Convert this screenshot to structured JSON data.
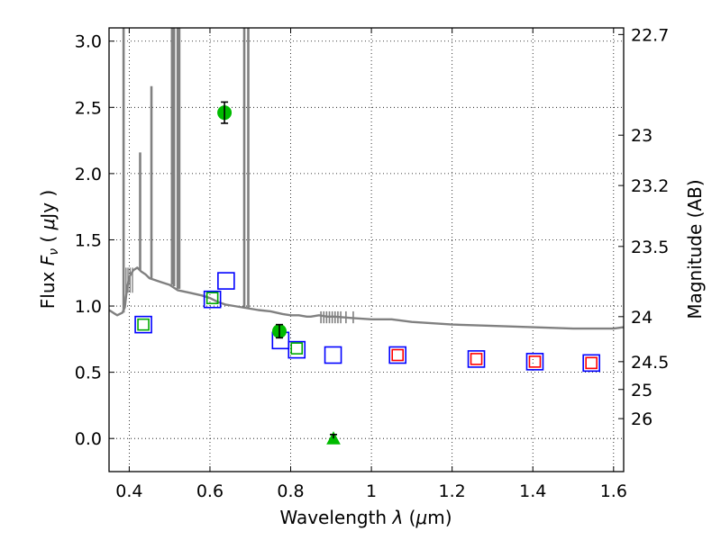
{
  "chart_data": {
    "type": "scatter",
    "title": "",
    "xlabel": "Wavelength  λ (μm)",
    "ylabel": "Flux  Fν  ( μJy )",
    "y2label": "Magnitude (AB)",
    "xlim": [
      0.35,
      1.625
    ],
    "ylim": [
      -0.25,
      3.1
    ],
    "grid": true,
    "xticks": [
      0.4,
      0.6,
      0.8,
      1.0,
      1.2,
      1.4,
      1.6
    ],
    "xtick_labels": [
      "0.4",
      "0.6",
      "0.8",
      "1",
      "1.2",
      "1.4",
      "1.6"
    ],
    "yticks": [
      0.0,
      0.5,
      1.0,
      1.5,
      2.0,
      2.5,
      3.0
    ],
    "ytick_labels": [
      "0.0",
      "0.5",
      "1.0",
      "1.5",
      "2.0",
      "2.5",
      "3.0"
    ],
    "y2ticks": [
      {
        "label": "22.7",
        "flux": 3.05
      },
      {
        "label": "23",
        "flux": 2.29
      },
      {
        "label": "23.2",
        "flux": 1.91
      },
      {
        "label": "23.5",
        "flux": 1.45
      },
      {
        "label": "24",
        "flux": 0.92
      },
      {
        "label": "24.5",
        "flux": 0.58
      },
      {
        "label": "25",
        "flux": 0.37
      },
      {
        "label": "26",
        "flux": 0.15
      }
    ],
    "colors": {
      "model": "#808080",
      "observed": "#00bb00",
      "model_phot_blue": "#0000ff",
      "model_phot_green": "#00aa00",
      "model_phot_red": "#ff0000",
      "errorbar": "#000000"
    },
    "series": [
      {
        "name": "model_spectrum",
        "kind": "line",
        "x": [
          0.35,
          0.37,
          0.383,
          0.389,
          0.394,
          0.4,
          0.41,
          0.42,
          0.43,
          0.44,
          0.45,
          0.46,
          0.48,
          0.5,
          0.52,
          0.55,
          0.58,
          0.6,
          0.62,
          0.64,
          0.66,
          0.68,
          0.7,
          0.72,
          0.75,
          0.78,
          0.8,
          0.82,
          0.84,
          0.85,
          0.87,
          0.89,
          0.91,
          0.95,
          1.0,
          1.05,
          1.1,
          1.2,
          1.3,
          1.4,
          1.5,
          1.6,
          1.625
        ],
        "y": [
          0.97,
          0.93,
          0.95,
          0.99,
          1.12,
          1.22,
          1.27,
          1.29,
          1.26,
          1.24,
          1.21,
          1.2,
          1.18,
          1.16,
          1.12,
          1.1,
          1.08,
          1.06,
          1.03,
          1.01,
          1.0,
          0.99,
          0.98,
          0.97,
          0.96,
          0.94,
          0.93,
          0.93,
          0.92,
          0.92,
          0.93,
          0.92,
          0.92,
          0.91,
          0.9,
          0.9,
          0.88,
          0.86,
          0.85,
          0.84,
          0.83,
          0.83,
          0.84
        ]
      },
      {
        "name": "model_spectrum_lines",
        "kind": "emission",
        "x": [
          0.386,
          0.427,
          0.455,
          0.506,
          0.511,
          0.52,
          0.524,
          0.685,
          0.695
        ],
        "peak": [
          3.1,
          2.16,
          2.66,
          3.1,
          3.1,
          3.1,
          3.1,
          3.1,
          3.1
        ],
        "base": [
          0.95,
          1.27,
          1.21,
          1.16,
          1.15,
          1.13,
          1.13,
          0.99,
          0.98
        ]
      },
      {
        "name": "observed_photometry",
        "kind": "points",
        "x": [
          0.636,
          0.772
        ],
        "y": [
          2.46,
          0.81
        ],
        "yerr": [
          0.08,
          0.05
        ]
      },
      {
        "name": "upper_limit",
        "kind": "triangle",
        "x": [
          0.906
        ],
        "y": [
          0.0
        ],
        "yerr": [
          0.03
        ]
      },
      {
        "name": "model_photometry_blue",
        "kind": "squares",
        "x": [
          0.435,
          0.606,
          0.64,
          0.775,
          0.815,
          0.905,
          1.065,
          1.26,
          1.405,
          1.545
        ],
        "y": [
          0.86,
          1.05,
          1.19,
          0.74,
          0.67,
          0.63,
          0.63,
          0.6,
          0.58,
          0.57
        ]
      },
      {
        "name": "model_photometry_green",
        "kind": "squares",
        "x": [
          0.435,
          0.606,
          0.815
        ],
        "y": [
          0.86,
          1.06,
          0.68
        ]
      },
      {
        "name": "model_photometry_red",
        "kind": "squares",
        "x": [
          1.065,
          1.26,
          1.405,
          1.545
        ],
        "y": [
          0.63,
          0.6,
          0.58,
          0.57
        ]
      }
    ]
  }
}
